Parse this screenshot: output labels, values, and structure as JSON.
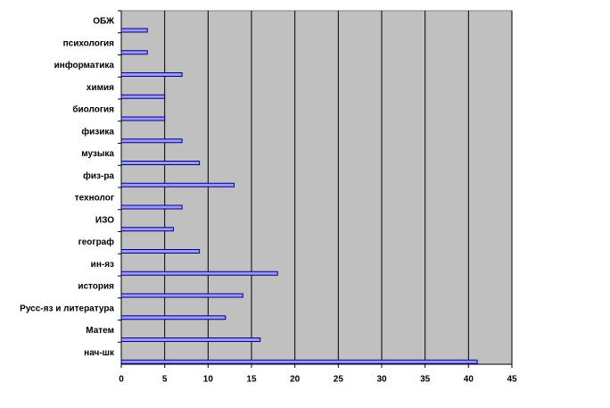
{
  "chart_data": {
    "type": "bar",
    "orientation": "horizontal",
    "categories": [
      "ОБЖ",
      "психология",
      "информатика",
      "химия",
      "биология",
      "физика",
      "музыка",
      "физ-ра",
      "технолог",
      "ИЗО",
      "географ",
      "ин-яз",
      "история",
      "Русс-яз и литература",
      "Матем",
      "нач-шк"
    ],
    "values": [
      3,
      3,
      7,
      5,
      5,
      7,
      9,
      13,
      7,
      6,
      9,
      18,
      14,
      12,
      16,
      41
    ],
    "color": "#9999ff",
    "xlim": [
      0,
      45
    ],
    "xticks": [
      0,
      5,
      10,
      15,
      20,
      25,
      30,
      35,
      40,
      45
    ],
    "grid": true
  }
}
